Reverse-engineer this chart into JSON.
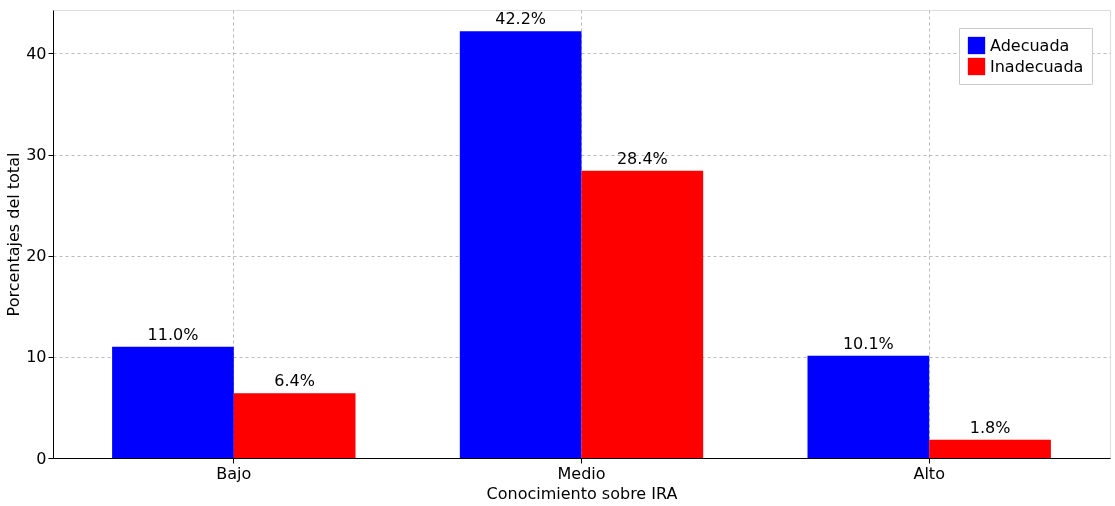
{
  "chart_data": {
    "type": "bar",
    "xlabel": "Conocimiento sobre IRA",
    "ylabel": "Porcentajes del total",
    "categories": [
      "Bajo",
      "Medio",
      "Alto"
    ],
    "series": [
      {
        "name": "Adecuada",
        "color": "#0000ff",
        "values": [
          11.0,
          42.2,
          10.1
        ],
        "value_labels": [
          "11.0%",
          "42.2%",
          "10.1%"
        ]
      },
      {
        "name": "Inadecuada",
        "color": "#ff0000",
        "values": [
          6.4,
          28.4,
          1.8
        ],
        "value_labels": [
          "6.4%",
          "28.4%",
          "1.8%"
        ]
      }
    ],
    "ylim": [
      0,
      44.3
    ],
    "yticks": [
      0,
      10,
      20,
      30,
      40
    ],
    "grid": true,
    "legend": "top right"
  }
}
